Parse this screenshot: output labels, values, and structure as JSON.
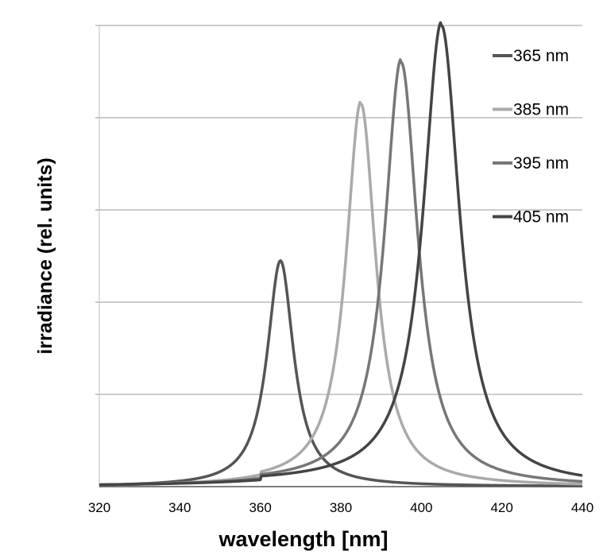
{
  "chart_data": {
    "type": "line",
    "title": "",
    "xlabel": "wavelength [nm]",
    "ylabel": "irradiance (rel. units)",
    "xlim": [
      320,
      440
    ],
    "ylim": [
      0,
      1.0
    ],
    "x_ticks": [
      "320",
      "340",
      "360",
      "380",
      "400",
      "420",
      "440"
    ],
    "y_gridlines": 5,
    "grid": "horizontal",
    "legend_position": "top-right",
    "series": [
      {
        "name": "365 nm",
        "color": "#555555",
        "peak": 365,
        "amplitude": 0.49,
        "width": 8,
        "baseline": 0.0
      },
      {
        "name": "385 nm",
        "color": "#aaaaaa",
        "peak": 385,
        "amplitude": 0.83,
        "width": 9,
        "baseline": 0.006
      },
      {
        "name": "395 nm",
        "color": "#777777",
        "peak": 395,
        "amplitude": 0.92,
        "width": 10,
        "baseline": 0.008
      },
      {
        "name": "405 nm",
        "color": "#444444",
        "peak": 405,
        "amplitude": 1.0,
        "width": 11,
        "baseline": 0.008
      }
    ]
  }
}
